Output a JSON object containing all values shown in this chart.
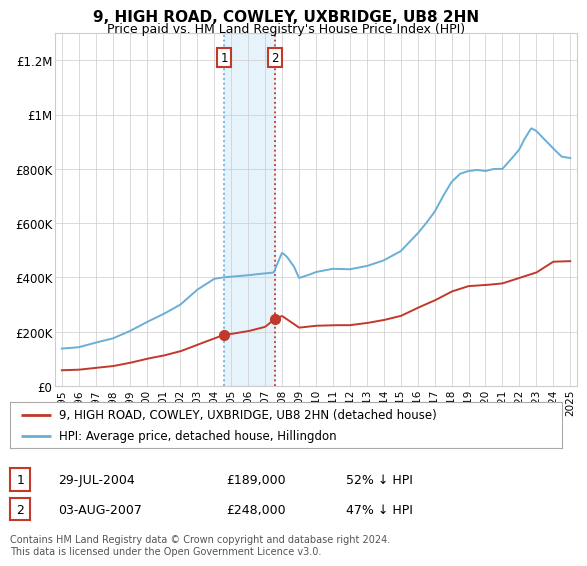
{
  "title": "9, HIGH ROAD, COWLEY, UXBRIDGE, UB8 2HN",
  "subtitle": "Price paid vs. HM Land Registry's House Price Index (HPI)",
  "ylabel_ticks": [
    "£0",
    "£200K",
    "£400K",
    "£600K",
    "£800K",
    "£1M",
    "£1.2M"
  ],
  "ytick_values": [
    0,
    200000,
    400000,
    600000,
    800000,
    1000000,
    1200000
  ],
  "ylim": [
    0,
    1300000
  ],
  "xlim_start": 1994.6,
  "xlim_end": 2025.4,
  "hpi_color": "#6baed6",
  "price_color": "#c0392b",
  "bg_color": "#ffffff",
  "grid_color": "#cccccc",
  "sale1_x": 2004.57,
  "sale1_y": 189000,
  "sale2_x": 2007.59,
  "sale2_y": 248000,
  "shade_color": "#d0e8f8",
  "shade_alpha": 0.5,
  "legend_line1": "9, HIGH ROAD, COWLEY, UXBRIDGE, UB8 2HN (detached house)",
  "legend_line2": "HPI: Average price, detached house, Hillingdon",
  "sale1_date": "29-JUL-2004",
  "sale1_price": "£189,000",
  "sale1_hpi": "52% ↓ HPI",
  "sale2_date": "03-AUG-2007",
  "sale2_price": "£248,000",
  "sale2_hpi": "47% ↓ HPI",
  "footnote": "Contains HM Land Registry data © Crown copyright and database right 2024.\nThis data is licensed under the Open Government Licence v3.0.",
  "hpi_key_x": [
    1995,
    1995.5,
    1996,
    1997,
    1998,
    1999,
    2000,
    2001,
    2002,
    2003,
    2004,
    2004.5,
    2005,
    2006,
    2006.5,
    2007,
    2007.5,
    2008,
    2008.3,
    2008.7,
    2009,
    2009.5,
    2010,
    2011,
    2012,
    2013,
    2014,
    2015,
    2016,
    2016.5,
    2017,
    2017.5,
    2018,
    2018.5,
    2019,
    2019.5,
    2020,
    2020.5,
    2021,
    2021.5,
    2022,
    2022.3,
    2022.7,
    2023,
    2023.3,
    2023.7,
    2024,
    2024.5,
    2025
  ],
  "hpi_key_y": [
    138000,
    140000,
    143000,
    160000,
    175000,
    202000,
    235000,
    265000,
    300000,
    355000,
    395000,
    400000,
    403000,
    408000,
    412000,
    415000,
    418000,
    492000,
    475000,
    440000,
    398000,
    408000,
    420000,
    432000,
    430000,
    442000,
    463000,
    497000,
    562000,
    600000,
    642000,
    700000,
    752000,
    782000,
    792000,
    796000,
    792000,
    800000,
    800000,
    835000,
    872000,
    910000,
    950000,
    940000,
    920000,
    895000,
    875000,
    845000,
    840000
  ],
  "price_key_x": [
    1995,
    1996,
    1997,
    1998,
    1999,
    2000,
    2001,
    2002,
    2003,
    2004,
    2004.57,
    2005,
    2006,
    2007,
    2007.59,
    2008,
    2009,
    2010,
    2011,
    2012,
    2013,
    2014,
    2015,
    2016,
    2017,
    2018,
    2019,
    2020,
    2021,
    2022,
    2023,
    2024,
    2025
  ],
  "price_key_y": [
    58000,
    60000,
    67000,
    73000,
    85000,
    100000,
    112000,
    128000,
    152000,
    175000,
    189000,
    192000,
    202000,
    218000,
    248000,
    258000,
    215000,
    222000,
    224000,
    224000,
    232000,
    243000,
    258000,
    288000,
    315000,
    348000,
    368000,
    372000,
    378000,
    398000,
    418000,
    458000,
    460000
  ]
}
